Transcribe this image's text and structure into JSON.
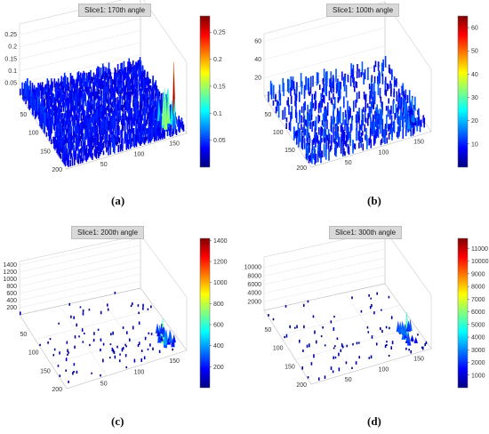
{
  "chart_data": [
    {
      "type": "surface",
      "title": "Slice1: 170th angle",
      "panel_label": "(a)",
      "zticks": [
        "0.05",
        "0.1",
        "0.15",
        "0.2",
        "0.25"
      ],
      "yticks": [
        "50",
        "100",
        "150",
        "200"
      ],
      "xticks": [
        "50",
        "100",
        "150"
      ],
      "colorbar_ticks": [
        "0.05",
        "0.1",
        "0.15",
        "0.2",
        "0.25"
      ],
      "colorbar_range": [
        0,
        0.28
      ],
      "colormap": "jet",
      "peak_value": 0.27,
      "noise_level": 0.04
    },
    {
      "type": "surface",
      "title": "Slice1: 100th angle",
      "panel_label": "(b)",
      "zticks": [
        "20",
        "40",
        "60"
      ],
      "yticks": [
        "50",
        "100",
        "150",
        "200"
      ],
      "xticks": [
        "50",
        "100",
        "150"
      ],
      "colorbar_ticks": [
        "10",
        "20",
        "30",
        "40",
        "50",
        "60"
      ],
      "colorbar_range": [
        0,
        65
      ],
      "colormap": "jet",
      "peak_value": 30,
      "noise_level": 12
    },
    {
      "type": "surface",
      "title": "Slice1: 200th angle",
      "panel_label": "(c)",
      "zticks": [
        "200",
        "400",
        "600",
        "800",
        "1000",
        "1200",
        "1400"
      ],
      "yticks": [
        "50",
        "100",
        "150",
        "200"
      ],
      "xticks": [
        "50",
        "100",
        "150"
      ],
      "colorbar_ticks": [
        "200",
        "400",
        "600",
        "800",
        "1000",
        "1200",
        "1400"
      ],
      "colorbar_range": [
        0,
        1420
      ],
      "colormap": "jet",
      "peak_value": 700,
      "noise_level": 60
    },
    {
      "type": "surface",
      "title": "Slice1: 300th angle",
      "panel_label": "(d)",
      "zticks": [
        "2000",
        "4000",
        "6000",
        "8000",
        "10000"
      ],
      "yticks": [
        "50",
        "100",
        "150",
        "200"
      ],
      "xticks": [
        "50",
        "100",
        "150"
      ],
      "colorbar_ticks": [
        "1000",
        "2000",
        "3000",
        "4000",
        "5000",
        "6000",
        "7000",
        "8000",
        "9000",
        "10000",
        "11000"
      ],
      "colorbar_range": [
        0,
        11800
      ],
      "colormap": "jet",
      "peak_value": 5500,
      "noise_level": 500
    }
  ]
}
